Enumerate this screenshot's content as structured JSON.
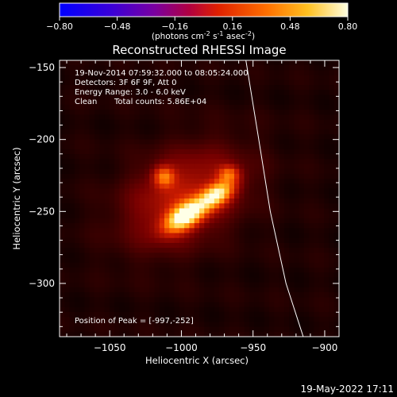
{
  "colorbar": {
    "ticks": [
      "-0.80",
      "-0.48",
      "-0.16",
      "0.16",
      "0.48",
      "0.80"
    ],
    "min": -0.8,
    "max": 0.8,
    "units_main": "(photons cm",
    "units_exp1": "-2",
    "units_mid": " s",
    "units_exp2": "-1",
    "units_end": " asec",
    "units_exp3": "-2",
    "units_close": ")"
  },
  "annotations": {
    "line1": "19-Nov-2014 07:59:32.000 to 08:05:24.000",
    "line2": "Detectors: 3F 6F 9F, Att 0",
    "line3": "Energy Range: 3.0 - 6.0 keV",
    "line4_method": "Clean",
    "line4_counts": "Total counts: 5.86E+04",
    "peak": "Position of Peak = [-997,-252]"
  },
  "footer": {
    "timestamp": "19-May-2022 17:11"
  },
  "colors": {
    "background": "#000000",
    "text": "#ffffff"
  },
  "chart_data": {
    "type": "heatmap",
    "title": "Reconstructed RHESSI Image",
    "xlabel": "Heliocentric X (arcsec)",
    "ylabel": "Heliocentric Y (arcsec)",
    "xlim": [
      -1085,
      -890
    ],
    "ylim": [
      -337,
      -145
    ],
    "x_ticks": [
      -1050,
      -1000,
      -950,
      -900
    ],
    "x_tick_labels": [
      "−1050",
      "−1000",
      "−950",
      "−900"
    ],
    "y_ticks": [
      -150,
      -200,
      -250,
      -300
    ],
    "y_tick_labels": [
      "−150",
      "−200",
      "−250",
      "−300"
    ],
    "colormap": "red temperature",
    "peak_position": [
      -997,
      -252
    ],
    "sources": [
      {
        "x": -997,
        "y": -253,
        "amplitude": 0.8,
        "sigma_major": 11,
        "sigma_minor": 5.5,
        "angle_deg": 32
      },
      {
        "x": -975,
        "y": -238,
        "amplitude": 0.62,
        "sigma_major": 9,
        "sigma_minor": 5,
        "angle_deg": 32
      },
      {
        "x": -1012,
        "y": -226,
        "amplitude": 0.38,
        "sigma_major": 5,
        "sigma_minor": 5,
        "angle_deg": 0
      },
      {
        "x": -967,
        "y": -224,
        "amplitude": 0.32,
        "sigma_major": 5,
        "sigma_minor": 4,
        "angle_deg": 0
      },
      {
        "x": -998,
        "y": -240,
        "amplitude": 0.25,
        "sigma_major": 30,
        "sigma_minor": 20,
        "angle_deg": 30
      }
    ],
    "background_level": 0.06,
    "limb_curve": [
      [
        -955,
        -145
      ],
      [
        -946,
        -200
      ],
      [
        -938,
        -250
      ],
      [
        -927,
        -300
      ],
      [
        -915,
        -337
      ]
    ]
  }
}
